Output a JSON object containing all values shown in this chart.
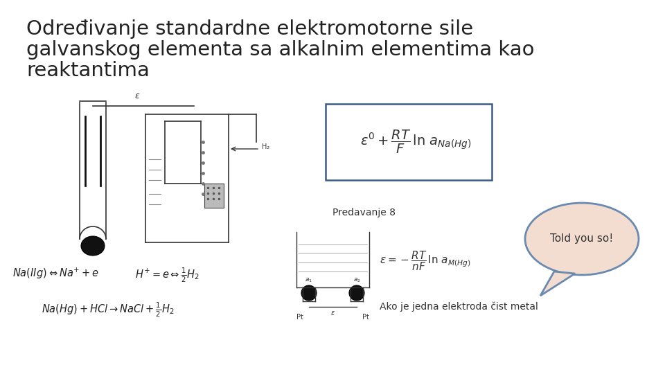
{
  "title_line1": "Određivanje standardne elektromotorne sile",
  "title_line2": "galvanskog elementa sa alkalnim elementima kao",
  "title_line3": "reaktantima",
  "subtitle": "Predavanje 8",
  "bubble_text": "Told you so!",
  "caption": "Ako je jedna elektroda čist metal",
  "bg_color": "#ffffff",
  "title_color": "#222222",
  "title_fontsize": 21,
  "subtitle_fontsize": 10,
  "bubble_fill": "#f2ddd0",
  "bubble_edge": "#6a8ab0",
  "formula_box_edge": "#3a5a8a",
  "eq_color": "#222222",
  "diagram_color": "#333333"
}
